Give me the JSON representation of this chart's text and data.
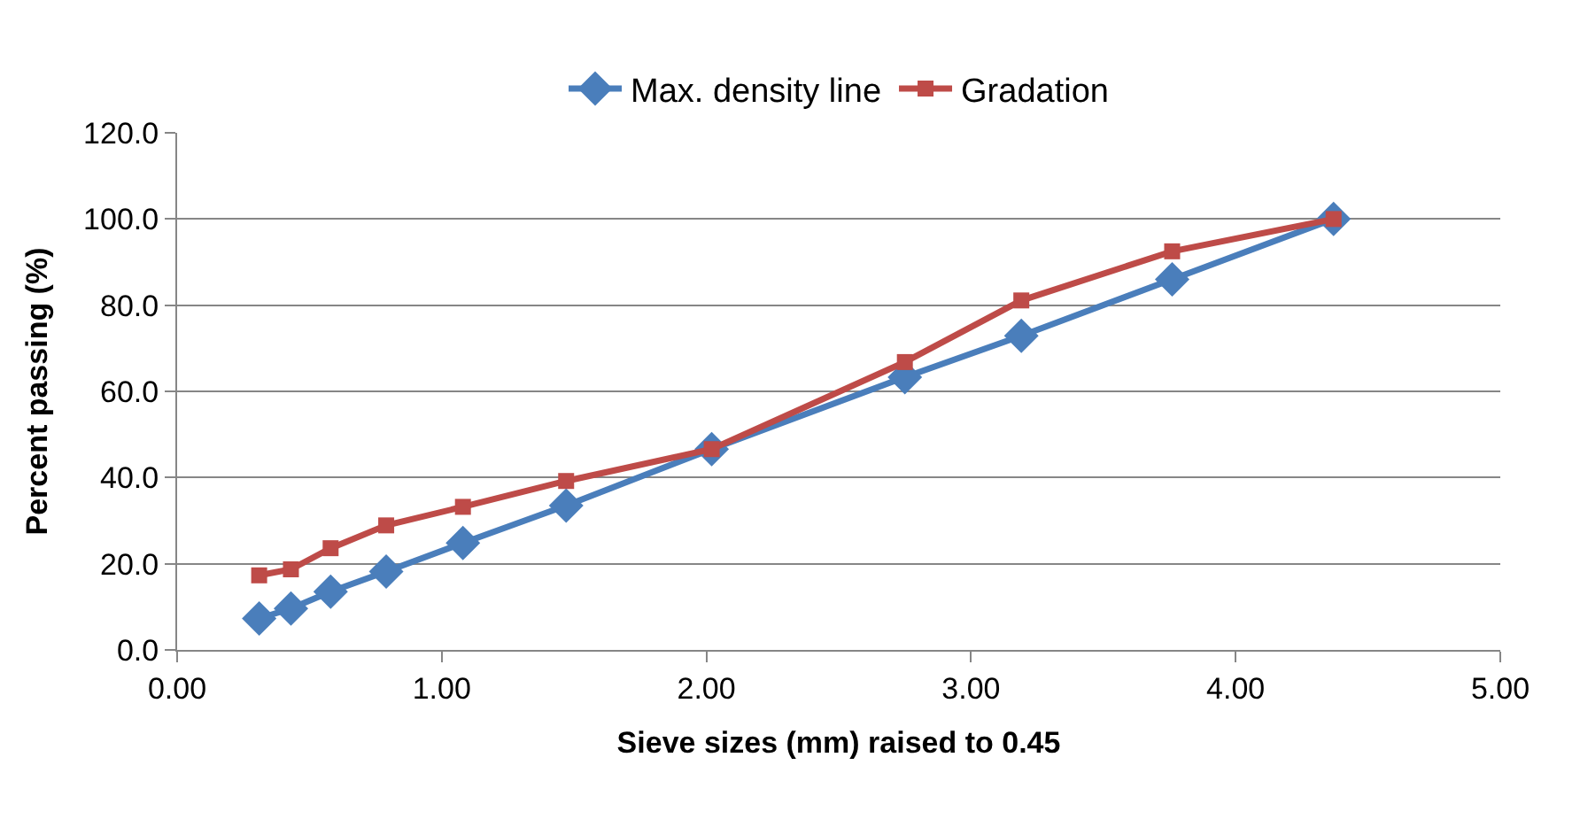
{
  "chart_data": {
    "type": "line",
    "xlabel": "Sieve sizes (mm) raised to 0.45",
    "ylabel": "Percent passing (%)",
    "xlim": [
      0,
      5
    ],
    "xticks": [
      {
        "value": 0,
        "label": "0.00"
      },
      {
        "value": 1,
        "label": "1.00"
      },
      {
        "value": 2,
        "label": "2.00"
      },
      {
        "value": 3,
        "label": "3.00"
      },
      {
        "value": 4,
        "label": "4.00"
      },
      {
        "value": 5,
        "label": "5.00"
      }
    ],
    "ylim": [
      0,
      120
    ],
    "yticks": [
      {
        "value": 0,
        "label": "0.0"
      },
      {
        "value": 20,
        "label": "20.0"
      },
      {
        "value": 40,
        "label": "40.0"
      },
      {
        "value": 60,
        "label": "60.0"
      },
      {
        "value": 80,
        "label": "80.0"
      },
      {
        "value": 100,
        "label": "100.0"
      },
      {
        "value": 120,
        "label": "120.0"
      }
    ],
    "x": [
      0.31,
      0.43,
      0.58,
      0.79,
      1.08,
      1.47,
      2.02,
      2.75,
      3.19,
      3.76,
      4.37
    ],
    "series": [
      {
        "name": "Max. density line",
        "color": "#4a7ebb",
        "marker": "diamond",
        "values": [
          7.3,
          9.6,
          13.5,
          18.2,
          24.8,
          33.5,
          46.6,
          63.3,
          72.9,
          86.0,
          100.0
        ]
      },
      {
        "name": "Gradation",
        "color": "#be4b48",
        "marker": "square",
        "values": [
          17.3,
          18.7,
          23.6,
          28.9,
          33.2,
          39.2,
          46.6,
          66.8,
          81.1,
          92.5,
          100.0
        ]
      }
    ],
    "grid": "y",
    "legend": "top",
    "line_style": "solid"
  }
}
